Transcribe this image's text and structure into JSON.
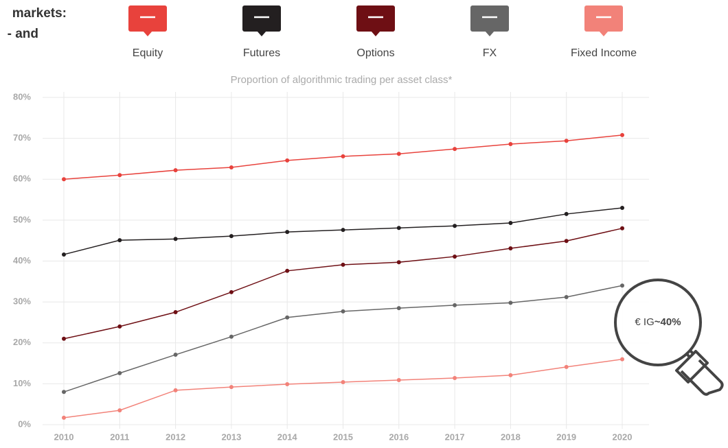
{
  "chart_data": {
    "type": "line",
    "title": [
      "markets:",
      "- and"
    ],
    "subtitle": "Proportion of algorithmic trading per asset class*",
    "annotation": {
      "prefix": "€ IG",
      "value": "~40%"
    },
    "categories": [
      "2010",
      "2011",
      "2012",
      "2013",
      "2014",
      "2015",
      "2016",
      "2017",
      "2018",
      "2019",
      "2020"
    ],
    "ylim": [
      0,
      80
    ],
    "yticks": [
      {
        "value": 0,
        "label": "0%"
      },
      {
        "value": 10,
        "label": "10%"
      },
      {
        "value": 20,
        "label": "20%"
      },
      {
        "value": 30,
        "label": "30%"
      },
      {
        "value": 40,
        "label": "40%"
      },
      {
        "value": 50,
        "label": "50%"
      },
      {
        "value": 60,
        "label": "60%"
      },
      {
        "value": 70,
        "label": "70%"
      },
      {
        "value": 80,
        "label": "80%"
      }
    ],
    "grid": true,
    "legend": "top",
    "series": [
      {
        "name": "Equity",
        "color": "#e8423c",
        "values": [
          60,
          61,
          62.2,
          62.9,
          64.6,
          65.6,
          66.2,
          67.4,
          68.6,
          69.4,
          70.8
        ]
      },
      {
        "name": "Futures",
        "color": "#231f20",
        "values": [
          41.6,
          45.1,
          45.4,
          46.1,
          47.1,
          47.6,
          48.1,
          48.6,
          49.3,
          51.5,
          53
        ]
      },
      {
        "name": "Options",
        "color": "#6e0f14",
        "values": [
          21,
          24,
          27.5,
          32.4,
          37.6,
          39.1,
          39.7,
          41.1,
          43.1,
          44.9,
          48
        ]
      },
      {
        "name": "FX",
        "color": "#666666",
        "values": [
          8,
          12.6,
          17.1,
          21.5,
          26.2,
          27.7,
          28.5,
          29.2,
          29.8,
          31.2,
          34
        ]
      },
      {
        "name": "Fixed Income",
        "color": "#f28279",
        "values": [
          1.7,
          3.5,
          8.4,
          9.2,
          9.9,
          10.4,
          10.9,
          11.4,
          12.1,
          14.1,
          16
        ]
      }
    ]
  }
}
